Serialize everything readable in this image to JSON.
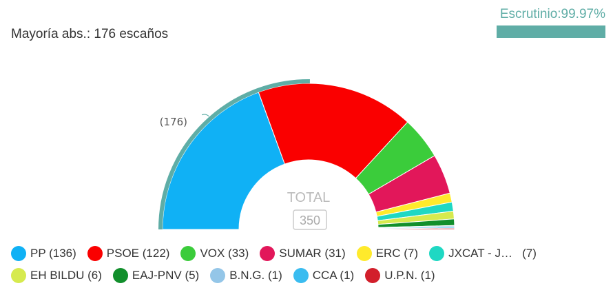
{
  "header": {
    "majority_label": "Mayoría abs.: 176 escaños",
    "scrutiny_label": "Escrutinio:99.97%",
    "scrutiny_percent": 99.97,
    "scrutiny_color": "#5fada6"
  },
  "chart_data": {
    "type": "pie",
    "style": "half-donut",
    "total_label": "TOTAL",
    "total_value": "350",
    "majority_marker": "(176)",
    "majority_seats": 176,
    "total_seats": 350,
    "series": [
      {
        "name": "PP",
        "value": 136,
        "color": "#10b1f5"
      },
      {
        "name": "PSOE",
        "value": 122,
        "color": "#fa0000"
      },
      {
        "name": "VOX",
        "value": 33,
        "color": "#3bcc3b"
      },
      {
        "name": "SUMAR",
        "value": 31,
        "color": "#e2175a"
      },
      {
        "name": "ERC",
        "value": 7,
        "color": "#ffea2c"
      },
      {
        "name": "JXCAT - J…",
        "value": 7,
        "color": "#1fd8c3"
      },
      {
        "name": "EH BILDU",
        "value": 6,
        "color": "#d6ea4e"
      },
      {
        "name": "EAJ-PNV",
        "value": 5,
        "color": "#128f2c"
      },
      {
        "name": "B.N.G.",
        "value": 1,
        "color": "#94c6e8"
      },
      {
        "name": "CCA",
        "value": 1,
        "color": "#3abcf0"
      },
      {
        "name": "U.P.N.",
        "value": 1,
        "color": "#d21f2b"
      }
    ]
  },
  "legend": {
    "rows": [
      [
        {
          "label": "PP (136)",
          "color": "#10b1f5"
        },
        {
          "label": "PSOE (122)",
          "color": "#fa0000"
        },
        {
          "label": "VOX (33)",
          "color": "#3bcc3b"
        },
        {
          "label": "SUMAR (31)",
          "color": "#e2175a"
        },
        {
          "label": "ERC (7)",
          "color": "#ffea2c"
        },
        {
          "label": "JXCAT - J…   (7)",
          "color": "#1fd8c3"
        }
      ],
      [
        {
          "label": "EH BILDU (6)",
          "color": "#d6ea4e"
        },
        {
          "label": "EAJ-PNV (5)",
          "color": "#128f2c"
        },
        {
          "label": "B.N.G. (1)",
          "color": "#94c6e8"
        },
        {
          "label": "CCA (1)",
          "color": "#3abcf0"
        },
        {
          "label": "U.P.N. (1)",
          "color": "#d21f2b"
        }
      ]
    ]
  }
}
